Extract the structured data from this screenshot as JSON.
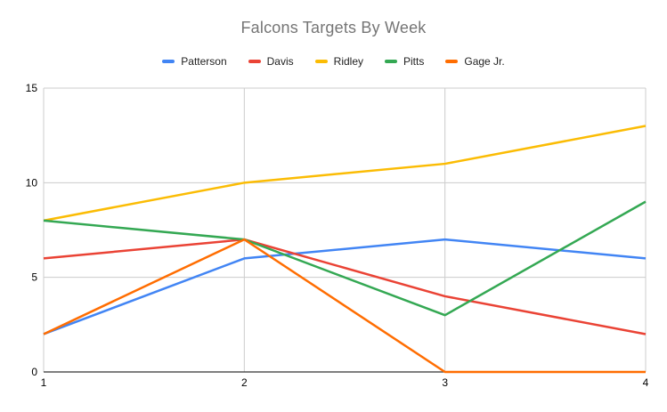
{
  "chart": {
    "title": "Falcons Targets By Week"
  },
  "chart_data": {
    "type": "line",
    "title": "Falcons Targets By Week",
    "categories": [
      "1",
      "2",
      "3",
      "4"
    ],
    "series": [
      {
        "name": "Patterson",
        "color": "#4285f4",
        "values": [
          2,
          6,
          7,
          6
        ]
      },
      {
        "name": "Davis",
        "color": "#ea4335",
        "values": [
          6,
          7,
          4,
          2
        ]
      },
      {
        "name": "Ridley",
        "color": "#fbbc04",
        "values": [
          8,
          10,
          11,
          13
        ]
      },
      {
        "name": "Pitts",
        "color": "#34a853",
        "values": [
          8,
          7,
          3,
          9
        ]
      },
      {
        "name": "Gage Jr.",
        "color": "#ff6d01",
        "values": [
          2,
          7,
          0,
          0
        ]
      }
    ],
    "xlabel": "",
    "ylabel": "",
    "ylim": [
      0,
      15
    ],
    "y_ticks": [
      0,
      5,
      10,
      15
    ],
    "grid": true,
    "legend_position": "top",
    "colors": {
      "title_text": "#757575",
      "legend_text": "#222222",
      "tick_text": "#000000",
      "gridline": "#cccccc",
      "axis_line": "#333333",
      "background": "#ffffff"
    }
  }
}
